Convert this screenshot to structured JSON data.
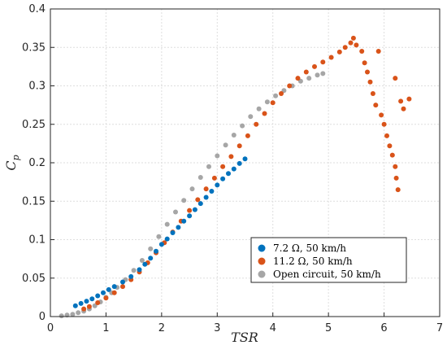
{
  "chart_data": {
    "type": "scatter",
    "title": "",
    "xlabel": "TSR",
    "ylabel_main": "C",
    "ylabel_sub": "p",
    "xlim": [
      0,
      7
    ],
    "ylim": [
      0,
      0.4
    ],
    "x_ticks": [
      0,
      1,
      2,
      3,
      4,
      5,
      6,
      7
    ],
    "y_ticks": [
      0,
      0.05,
      0.1,
      0.15,
      0.2,
      0.25,
      0.3,
      0.35,
      0.4
    ],
    "x_tick_labels": [
      "0",
      "1",
      "2",
      "3",
      "4",
      "5",
      "6",
      "7"
    ],
    "y_tick_labels": [
      "0",
      "0.05",
      "0.1",
      "0.15",
      "0.2",
      "0.25",
      "0.3",
      "0.35",
      "0.4"
    ],
    "grid": true,
    "legend_position": "bottom-right",
    "series": [
      {
        "name": "7.2 Ω, 50 km/h",
        "color": "#0072BD",
        "points": [
          [
            0.45,
            0.014
          ],
          [
            0.55,
            0.017
          ],
          [
            0.65,
            0.02
          ],
          [
            0.75,
            0.023
          ],
          [
            0.85,
            0.027
          ],
          [
            0.95,
            0.031
          ],
          [
            1.05,
            0.035
          ],
          [
            1.15,
            0.039
          ],
          [
            1.3,
            0.045
          ],
          [
            1.45,
            0.052
          ],
          [
            1.6,
            0.061
          ],
          [
            1.7,
            0.068
          ],
          [
            1.8,
            0.076
          ],
          [
            1.9,
            0.085
          ],
          [
            2.0,
            0.094
          ],
          [
            2.1,
            0.101
          ],
          [
            2.2,
            0.109
          ],
          [
            2.3,
            0.116
          ],
          [
            2.4,
            0.124
          ],
          [
            2.5,
            0.131
          ],
          [
            2.6,
            0.139
          ],
          [
            2.7,
            0.147
          ],
          [
            2.8,
            0.155
          ],
          [
            2.9,
            0.163
          ],
          [
            3.0,
            0.171
          ],
          [
            3.1,
            0.179
          ],
          [
            3.2,
            0.186
          ],
          [
            3.3,
            0.192
          ],
          [
            3.4,
            0.199
          ],
          [
            3.5,
            0.205
          ]
        ]
      },
      {
        "name": "11.2 Ω, 50 km/h",
        "color": "#D95319",
        "points": [
          [
            0.6,
            0.01
          ],
          [
            0.7,
            0.013
          ],
          [
            0.85,
            0.018
          ],
          [
            1.0,
            0.024
          ],
          [
            1.15,
            0.031
          ],
          [
            1.3,
            0.039
          ],
          [
            1.45,
            0.048
          ],
          [
            1.6,
            0.058
          ],
          [
            1.75,
            0.07
          ],
          [
            1.9,
            0.083
          ],
          [
            2.05,
            0.096
          ],
          [
            2.2,
            0.11
          ],
          [
            2.35,
            0.124
          ],
          [
            2.5,
            0.138
          ],
          [
            2.65,
            0.152
          ],
          [
            2.8,
            0.166
          ],
          [
            2.95,
            0.18
          ],
          [
            3.1,
            0.195
          ],
          [
            3.25,
            0.208
          ],
          [
            3.4,
            0.222
          ],
          [
            3.55,
            0.235
          ],
          [
            3.7,
            0.25
          ],
          [
            3.85,
            0.264
          ],
          [
            4.0,
            0.278
          ],
          [
            4.15,
            0.29
          ],
          [
            4.3,
            0.3
          ],
          [
            4.45,
            0.31
          ],
          [
            4.6,
            0.318
          ],
          [
            4.75,
            0.325
          ],
          [
            4.9,
            0.331
          ],
          [
            5.05,
            0.337
          ],
          [
            5.2,
            0.344
          ],
          [
            5.3,
            0.35
          ],
          [
            5.4,
            0.356
          ],
          [
            5.5,
            0.353
          ],
          [
            5.6,
            0.345
          ],
          [
            5.65,
            0.33
          ],
          [
            5.7,
            0.318
          ],
          [
            5.75,
            0.305
          ],
          [
            5.8,
            0.29
          ],
          [
            5.85,
            0.275
          ],
          [
            5.95,
            0.262
          ],
          [
            6.0,
            0.25
          ],
          [
            6.05,
            0.235
          ],
          [
            6.1,
            0.222
          ],
          [
            6.15,
            0.21
          ],
          [
            6.2,
            0.195
          ],
          [
            6.22,
            0.18
          ],
          [
            6.25,
            0.165
          ],
          [
            6.3,
            0.28
          ],
          [
            6.2,
            0.31
          ],
          [
            6.35,
            0.27
          ],
          [
            6.45,
            0.283
          ],
          [
            5.45,
            0.362
          ],
          [
            5.9,
            0.345
          ]
        ]
      },
      {
        "name": "Open circuit, 50 km/h",
        "color": "#A6A6A6",
        "points": [
          [
            0.2,
            0.001
          ],
          [
            0.3,
            0.002
          ],
          [
            0.4,
            0.003
          ],
          [
            0.5,
            0.005
          ],
          [
            0.6,
            0.007
          ],
          [
            0.7,
            0.01
          ],
          [
            0.8,
            0.014
          ],
          [
            0.9,
            0.019
          ],
          [
            1.0,
            0.025
          ],
          [
            1.1,
            0.031
          ],
          [
            1.2,
            0.038
          ],
          [
            1.35,
            0.048
          ],
          [
            1.5,
            0.06
          ],
          [
            1.65,
            0.073
          ],
          [
            1.8,
            0.088
          ],
          [
            1.95,
            0.104
          ],
          [
            2.1,
            0.12
          ],
          [
            2.25,
            0.136
          ],
          [
            2.4,
            0.151
          ],
          [
            2.55,
            0.166
          ],
          [
            2.7,
            0.181
          ],
          [
            2.85,
            0.195
          ],
          [
            3.0,
            0.209
          ],
          [
            3.15,
            0.223
          ],
          [
            3.3,
            0.236
          ],
          [
            3.45,
            0.248
          ],
          [
            3.6,
            0.26
          ],
          [
            3.75,
            0.27
          ],
          [
            3.9,
            0.279
          ],
          [
            4.05,
            0.287
          ],
          [
            4.2,
            0.294
          ],
          [
            4.35,
            0.3
          ],
          [
            4.5,
            0.306
          ],
          [
            4.65,
            0.31
          ],
          [
            4.8,
            0.314
          ],
          [
            4.9,
            0.316
          ]
        ]
      }
    ]
  }
}
